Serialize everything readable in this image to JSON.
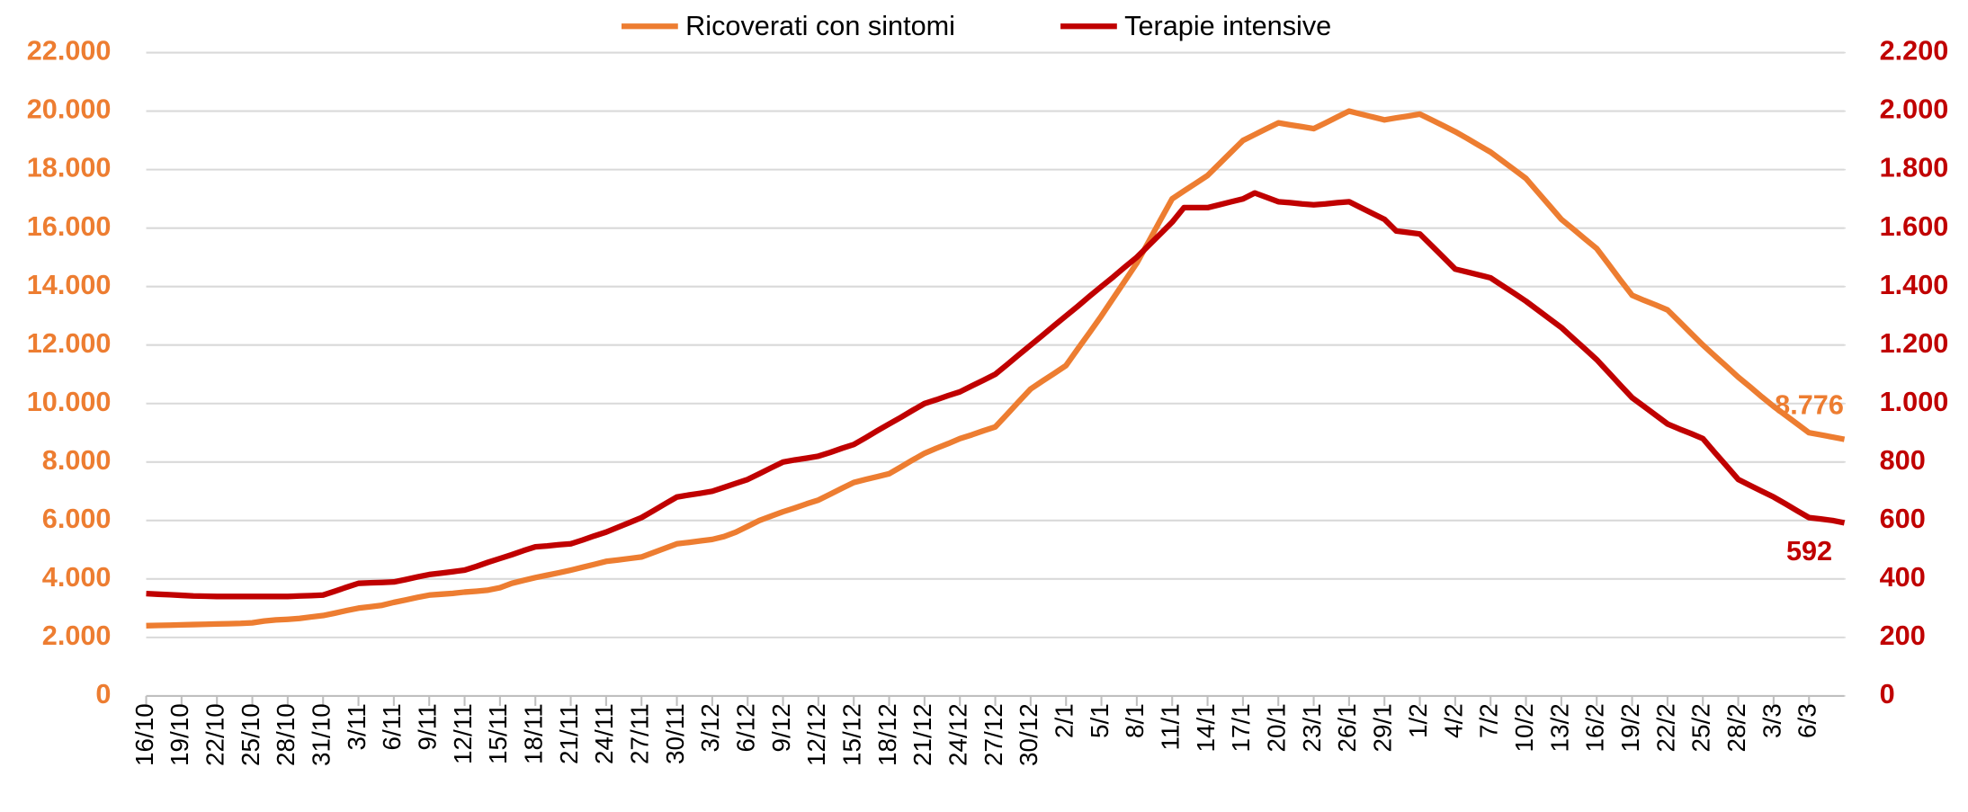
{
  "chart_data": {
    "type": "line",
    "legend": "top",
    "grid": true,
    "categories": [
      "16/10",
      null,
      null,
      "19/10",
      null,
      null,
      "22/10",
      null,
      null,
      "25/10",
      null,
      null,
      "28/10",
      null,
      null,
      "31/10",
      null,
      null,
      "3/11",
      null,
      null,
      "6/11",
      null,
      null,
      "9/11",
      null,
      null,
      "12/11",
      null,
      null,
      "15/11",
      null,
      null,
      "18/11",
      null,
      null,
      "21/11",
      null,
      null,
      "24/11",
      null,
      null,
      "27/11",
      null,
      null,
      "30/11",
      null,
      null,
      "3/12",
      null,
      null,
      "6/12",
      null,
      null,
      "9/12",
      null,
      null,
      "12/12",
      null,
      null,
      "15/12",
      null,
      null,
      "18/12",
      null,
      null,
      "21/12",
      null,
      null,
      "24/12",
      null,
      null,
      "27/12",
      null,
      null,
      "30/12",
      null,
      null,
      "2/1",
      null,
      null,
      "5/1",
      null,
      null,
      "8/1",
      null,
      null,
      "11/1",
      null,
      null,
      "14/1",
      null,
      null,
      "17/1",
      null,
      null,
      "20/1",
      null,
      null,
      "23/1",
      null,
      null,
      "26/1",
      null,
      null,
      "29/1",
      null,
      null,
      "1/2",
      null,
      null,
      "4/2",
      null,
      null,
      "7/2",
      null,
      null,
      "10/2",
      null,
      null,
      "13/2",
      null,
      null,
      "16/2",
      null,
      null,
      "19/2",
      null,
      null,
      "22/2",
      null,
      null,
      "25/2",
      null,
      null,
      "28/2",
      null,
      null,
      "3/3",
      null,
      null,
      "6/3",
      null,
      null,
      null
    ],
    "ylim": [
      0,
      22000
    ],
    "yticks": [
      0,
      {
        "value": 2000,
        "label": "2.000"
      },
      {
        "value": 4000,
        "label": "4.000"
      },
      {
        "value": 6000,
        "label": "6.000"
      },
      {
        "value": 8000,
        "label": "8.000"
      },
      {
        "value": 10000,
        "label": "10.000"
      },
      {
        "value": 12000,
        "label": "12.000"
      },
      {
        "value": 14000,
        "label": "14.000"
      },
      {
        "value": 16000,
        "label": "16.000"
      },
      {
        "value": 18000,
        "label": "18.000"
      },
      {
        "value": 20000,
        "label": "20.000"
      },
      {
        "value": 22000,
        "label": "22.000"
      }
    ],
    "y2lim": [
      0,
      2200
    ],
    "y2ticks": [
      0,
      200,
      400,
      600,
      800,
      {
        "value": 1000,
        "label": "1.000"
      },
      {
        "value": 1200,
        "label": "1.200"
      },
      {
        "value": 1400,
        "label": "1.400"
      },
      {
        "value": 1600,
        "label": "1.600"
      },
      {
        "value": 1800,
        "label": "1.800"
      },
      {
        "value": 2000,
        "label": "2.000"
      },
      {
        "value": 2200,
        "label": "2.200"
      }
    ],
    "y_color": "#ed7d31",
    "y2_color": "#c00000",
    "series": [
      {
        "name": "Ricoverati con sintomi",
        "color": "#ed7d31",
        "axis": "y",
        "values": [
          2400,
          2410,
          2420,
          2430,
          2440,
          2450,
          2460,
          2470,
          2480,
          2500,
          2560,
          2600,
          2620,
          2650,
          2700,
          2750,
          2830,
          2920,
          3000,
          3050,
          3100,
          3200,
          3280,
          3370,
          3450,
          3480,
          3510,
          3550,
          3580,
          3620,
          3700,
          3850,
          3950,
          4050,
          4130,
          4210,
          4300,
          4400,
          4500,
          4600,
          4650,
          4700,
          4750,
          4900,
          5050,
          5200,
          5250,
          5300,
          5350,
          5450,
          5600,
          5800,
          6000,
          6150,
          6300,
          6430,
          6570,
          6700,
          6900,
          7100,
          7300,
          7400,
          7500,
          7600,
          7830,
          8070,
          8300,
          8470,
          8630,
          8800,
          8930,
          9070,
          9200,
          9630,
          10070,
          10500,
          10770,
          11030,
          11300,
          11870,
          12430,
          13000,
          13600,
          14200,
          14800,
          15530,
          16270,
          17000,
          17270,
          17530,
          17800,
          18200,
          18600,
          19000,
          19200,
          19400,
          19600,
          19530,
          19470,
          19400,
          19600,
          19800,
          20000,
          19900,
          19800,
          19700,
          19770,
          19830,
          19900,
          19700,
          19500,
          19300,
          19070,
          18830,
          18600,
          18300,
          18000,
          17700,
          17230,
          16770,
          16300,
          15970,
          15630,
          15300,
          14770,
          14230,
          13700,
          13530,
          13370,
          13200,
          12800,
          12400,
          12000,
          11630,
          11270,
          10900,
          10570,
          10230,
          9900,
          9600,
          9300,
          9000,
          8930,
          8850,
          8776
        ],
        "value_labels": {
          "144": "8.776"
        }
      },
      {
        "name": "Terapie intensive",
        "color": "#c00000",
        "axis": "y2",
        "values": [
          350,
          348,
          346,
          344,
          342,
          341,
          340,
          340,
          340,
          340,
          340,
          340,
          340,
          342,
          343,
          345,
          358,
          372,
          385,
          387,
          388,
          390,
          398,
          407,
          415,
          420,
          425,
          430,
          443,
          457,
          470,
          483,
          497,
          510,
          513,
          517,
          520,
          533,
          547,
          560,
          577,
          593,
          610,
          633,
          657,
          680,
          687,
          693,
          700,
          713,
          727,
          740,
          760,
          780,
          800,
          807,
          813,
          820,
          833,
          847,
          860,
          883,
          907,
          930,
          953,
          977,
          1000,
          1013,
          1027,
          1040,
          1060,
          1080,
          1100,
          1133,
          1167,
          1200,
          1233,
          1267,
          1300,
          1333,
          1367,
          1400,
          1433,
          1467,
          1500,
          1540,
          1580,
          1620,
          1670,
          1670,
          1670,
          1680,
          1690,
          1700,
          1720,
          1705,
          1690,
          1687,
          1683,
          1680,
          1683,
          1687,
          1690,
          1670,
          1650,
          1630,
          1590,
          1585,
          1580,
          1540,
          1500,
          1460,
          1450,
          1440,
          1430,
          1403,
          1377,
          1350,
          1320,
          1290,
          1260,
          1223,
          1187,
          1150,
          1107,
          1063,
          1020,
          990,
          960,
          930,
          913,
          897,
          880,
          833,
          787,
          740,
          720,
          700,
          680,
          657,
          633,
          610,
          605,
          600,
          592
        ],
        "value_labels": {
          "144": "592"
        }
      }
    ]
  }
}
